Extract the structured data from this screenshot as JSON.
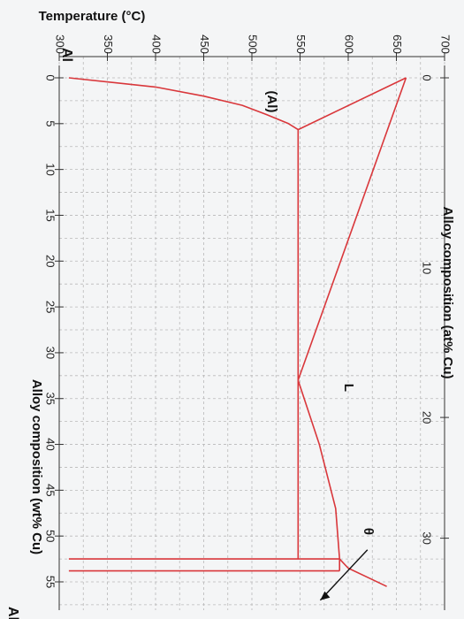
{
  "chart_data": {
    "type": "line",
    "title": "",
    "left_axis": {
      "label": "Temperature (°C)",
      "ticks": [
        300,
        350,
        400,
        450,
        500,
        550,
        600,
        650,
        700
      ],
      "range": [
        300,
        700
      ]
    },
    "bottom_axis": {
      "label": "Alloy composition (wt% Cu)",
      "ticks": [
        0,
        5,
        10,
        15,
        20,
        25,
        30,
        35,
        40,
        45,
        50,
        55
      ],
      "range": [
        0,
        56
      ]
    },
    "top_axis": {
      "label": "Alloy composition (at% Cu)",
      "ticks": [
        0,
        10,
        20,
        30
      ]
    },
    "corner_labels": {
      "top": "Al",
      "bottom": "Al"
    },
    "phase_labels": {
      "solid": "(Al)",
      "liquid": "L",
      "theta": "θ"
    },
    "grid": true,
    "series": [
      {
        "points": [
          [
            0,
            660
          ],
          [
            33,
            548
          ]
        ]
      },
      {
        "points": [
          [
            0,
            660
          ],
          [
            5.65,
            548
          ]
        ]
      },
      {
        "points": [
          [
            0,
            310
          ],
          [
            1.0,
            400
          ],
          [
            2.0,
            450
          ],
          [
            3.0,
            490
          ],
          [
            4.0,
            515
          ],
          [
            5.0,
            538
          ],
          [
            5.65,
            548
          ]
        ]
      },
      {
        "points": [
          [
            5.65,
            548
          ],
          [
            52.5,
            548
          ]
        ]
      },
      {
        "points": [
          [
            33,
            548
          ],
          [
            40,
            570
          ],
          [
            47,
            587
          ],
          [
            52.5,
            591
          ],
          [
            53.5,
            600
          ],
          [
            54.5,
            620
          ],
          [
            55.5,
            640
          ]
        ]
      },
      {
        "points": [
          [
            52.5,
            310
          ],
          [
            52.5,
            591
          ]
        ]
      },
      {
        "points": [
          [
            53.8,
            310
          ],
          [
            53.8,
            591
          ]
        ]
      },
      {
        "points": [
          [
            52.5,
            591
          ],
          [
            53.8,
            591
          ]
        ]
      }
    ]
  },
  "colors": {
    "line": "#d9373b",
    "grid": "#b9b9b9",
    "axis": "#333333",
    "arrow": "#111111"
  }
}
